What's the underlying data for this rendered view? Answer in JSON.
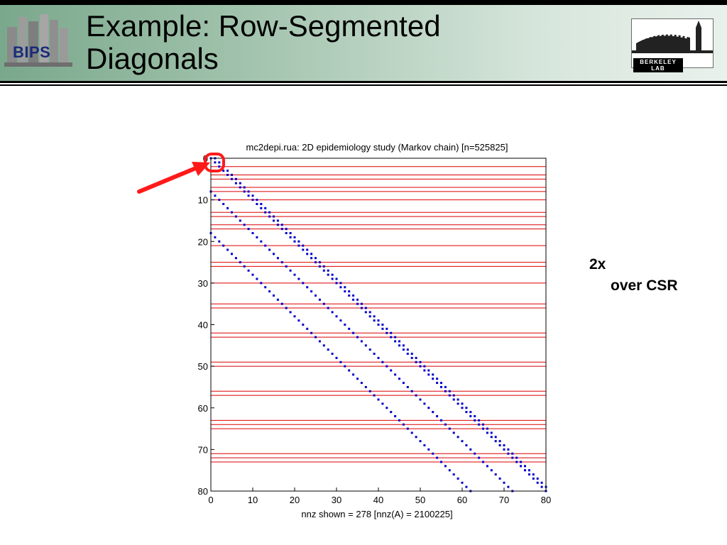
{
  "header": {
    "title_lines": [
      "Example: Row-Segmented",
      "Diagonals"
    ],
    "left_logo_text": "BIPS",
    "right_logo_text": "BERKELEY LAB",
    "colors": {
      "band_left": "#7aa88c",
      "band_right": "#e9f1ec",
      "rule": "#000000"
    }
  },
  "annotation": {
    "line1": "2x",
    "line2": "over CSR",
    "arrow_color": "#ff1a1a",
    "arrow_icon": "arrow-icon",
    "highlight_icon": "circle-highlight-icon"
  },
  "chart_data": {
    "type": "scatter",
    "title": "mc2depi.rua: 2D epidemiology study (Markov chain) [n=525825]",
    "xlabel": "nnz shown = 278 [nnz(A) = 2100225]",
    "ylabel": "",
    "xlim": [
      0,
      80
    ],
    "ylim": [
      0,
      80
    ],
    "y_inverted": true,
    "x_ticks": [
      "0",
      "10",
      "20",
      "30",
      "40",
      "50",
      "60",
      "70",
      "80"
    ],
    "y_ticks": [
      "0",
      "10",
      "20",
      "30",
      "40",
      "50",
      "60",
      "70",
      "80"
    ],
    "grid": false,
    "marker_color": "#0000cc",
    "segment_line_color": "#dd0000",
    "series": [
      {
        "diagonal_offset": 0,
        "x_range": [
          0,
          80
        ]
      },
      {
        "diagonal_offset": 1,
        "x_range": [
          1,
          80
        ]
      },
      {
        "diagonal_offset": -8,
        "x_range": [
          0,
          72
        ]
      },
      {
        "diagonal_offset": -18,
        "x_range": [
          0,
          63
        ]
      }
    ],
    "row_segment_lines": [
      2,
      4,
      5,
      7,
      8,
      10,
      13,
      14,
      16,
      17,
      21,
      25,
      26,
      30,
      35,
      36,
      42,
      43,
      49,
      50,
      56,
      57,
      63,
      64,
      65,
      71,
      72,
      73
    ]
  }
}
